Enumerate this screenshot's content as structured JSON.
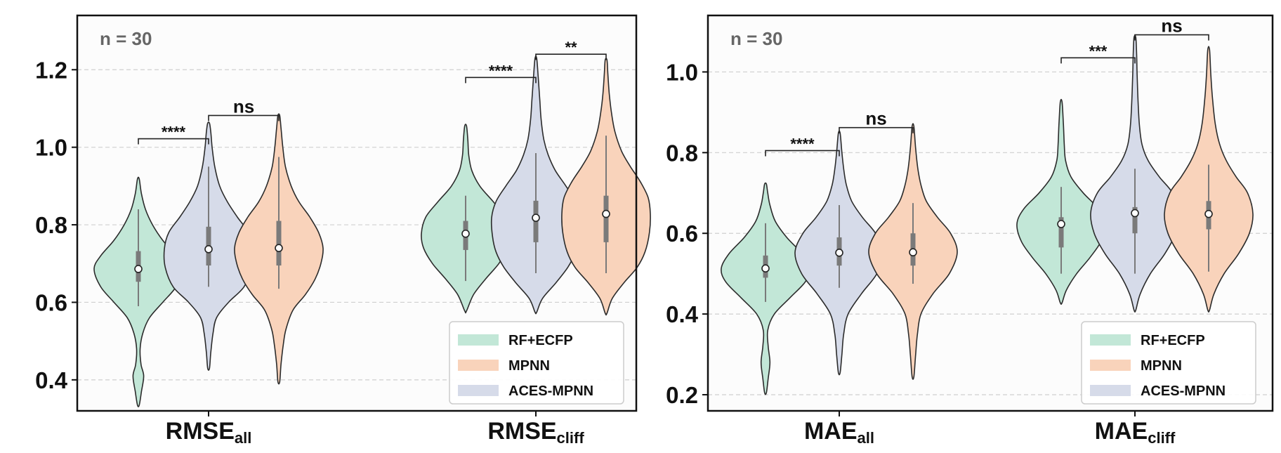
{
  "colors": {
    "RF+ECFP": "#c2e7d7",
    "MPNN": "#f9d3bb",
    "ACES-MPNN": "#d6dbe9",
    "outline": "#2b2b2b",
    "box": "#7a7a7a",
    "grid": "#cfcfcf",
    "bracket": "#222222"
  },
  "chart_data": [
    {
      "type": "violin",
      "annotation": "n = 30",
      "ylim": [
        0.32,
        1.34
      ],
      "yticks": [
        0.4,
        0.6,
        0.8,
        1.0,
        1.2
      ],
      "ytick_labels": [
        "0.4",
        "0.6",
        "0.8",
        "1.0",
        "1.2"
      ],
      "grid": true,
      "categories": [
        {
          "main": "RMSE",
          "sub": "all"
        },
        {
          "main": "RMSE",
          "sub": "cliff"
        }
      ],
      "legend": {
        "position": "lower-right",
        "entries": [
          "RF+ECFP",
          "MPNN",
          "ACES-MPNN"
        ]
      },
      "series": [
        {
          "name": "RF+ECFP",
          "group": 0,
          "median": 0.686,
          "q1": 0.653,
          "q3": 0.732,
          "wlow": 0.59,
          "whigh": 0.84,
          "min": 0.335,
          "max": 0.918,
          "density": [
            [
              0.335,
              0.02
            ],
            [
              0.37,
              0.07
            ],
            [
              0.41,
              0.12
            ],
            [
              0.44,
              0.06
            ],
            [
              0.48,
              0.04
            ],
            [
              0.52,
              0.1
            ],
            [
              0.56,
              0.25
            ],
            [
              0.6,
              0.55
            ],
            [
              0.64,
              0.85
            ],
            [
              0.686,
              1.0
            ],
            [
              0.72,
              0.85
            ],
            [
              0.76,
              0.55
            ],
            [
              0.8,
              0.32
            ],
            [
              0.84,
              0.16
            ],
            [
              0.88,
              0.07
            ],
            [
              0.918,
              0.02
            ]
          ]
        },
        {
          "name": "ACES-MPNN",
          "group": 0,
          "median": 0.737,
          "q1": 0.695,
          "q3": 0.795,
          "wlow": 0.64,
          "whigh": 0.95,
          "min": 0.43,
          "max": 1.062,
          "density": [
            [
              0.43,
              0.02
            ],
            [
              0.47,
              0.05
            ],
            [
              0.52,
              0.1
            ],
            [
              0.56,
              0.18
            ],
            [
              0.6,
              0.45
            ],
            [
              0.64,
              0.8
            ],
            [
              0.69,
              0.98
            ],
            [
              0.737,
              1.0
            ],
            [
              0.78,
              0.9
            ],
            [
              0.82,
              0.65
            ],
            [
              0.86,
              0.42
            ],
            [
              0.9,
              0.25
            ],
            [
              0.95,
              0.14
            ],
            [
              1.0,
              0.08
            ],
            [
              1.04,
              0.05
            ],
            [
              1.062,
              0.02
            ]
          ]
        },
        {
          "name": "MPNN",
          "group": 0,
          "median": 0.74,
          "q1": 0.695,
          "q3": 0.81,
          "wlow": 0.635,
          "whigh": 0.975,
          "min": 0.395,
          "max": 1.082,
          "density": [
            [
              0.395,
              0.02
            ],
            [
              0.44,
              0.05
            ],
            [
              0.49,
              0.1
            ],
            [
              0.53,
              0.16
            ],
            [
              0.58,
              0.32
            ],
            [
              0.62,
              0.6
            ],
            [
              0.66,
              0.82
            ],
            [
              0.7,
              0.95
            ],
            [
              0.74,
              1.0
            ],
            [
              0.78,
              0.9
            ],
            [
              0.82,
              0.7
            ],
            [
              0.86,
              0.45
            ],
            [
              0.9,
              0.28
            ],
            [
              0.95,
              0.15
            ],
            [
              1.0,
              0.09
            ],
            [
              1.05,
              0.05
            ],
            [
              1.082,
              0.02
            ]
          ]
        },
        {
          "name": "RF+ECFP",
          "group": 1,
          "median": 0.777,
          "q1": 0.735,
          "q3": 0.81,
          "wlow": 0.655,
          "whigh": 0.875,
          "min": 0.578,
          "max": 1.055,
          "density": [
            [
              0.578,
              0.02
            ],
            [
              0.62,
              0.18
            ],
            [
              0.66,
              0.45
            ],
            [
              0.7,
              0.75
            ],
            [
              0.74,
              0.95
            ],
            [
              0.777,
              1.0
            ],
            [
              0.82,
              0.9
            ],
            [
              0.86,
              0.62
            ],
            [
              0.9,
              0.32
            ],
            [
              0.94,
              0.14
            ],
            [
              0.98,
              0.07
            ],
            [
              1.02,
              0.05
            ],
            [
              1.055,
              0.02
            ]
          ]
        },
        {
          "name": "ACES-MPNN",
          "group": 1,
          "median": 0.818,
          "q1": 0.755,
          "q3": 0.862,
          "wlow": 0.675,
          "whigh": 0.985,
          "min": 0.575,
          "max": 1.228,
          "density": [
            [
              0.575,
              0.02
            ],
            [
              0.61,
              0.15
            ],
            [
              0.65,
              0.45
            ],
            [
              0.69,
              0.72
            ],
            [
              0.73,
              0.9
            ],
            [
              0.77,
              0.98
            ],
            [
              0.818,
              1.0
            ],
            [
              0.86,
              0.9
            ],
            [
              0.9,
              0.68
            ],
            [
              0.94,
              0.44
            ],
            [
              0.98,
              0.28
            ],
            [
              1.02,
              0.18
            ],
            [
              1.07,
              0.12
            ],
            [
              1.12,
              0.09
            ],
            [
              1.17,
              0.06
            ],
            [
              1.228,
              0.02
            ]
          ]
        },
        {
          "name": "MPNN",
          "group": 1,
          "median": 0.828,
          "q1": 0.755,
          "q3": 0.875,
          "wlow": 0.675,
          "whigh": 1.03,
          "min": 0.572,
          "max": 1.225,
          "density": [
            [
              0.572,
              0.02
            ],
            [
              0.61,
              0.14
            ],
            [
              0.65,
              0.4
            ],
            [
              0.69,
              0.7
            ],
            [
              0.73,
              0.88
            ],
            [
              0.78,
              0.98
            ],
            [
              0.828,
              1.0
            ],
            [
              0.87,
              0.95
            ],
            [
              0.91,
              0.78
            ],
            [
              0.95,
              0.55
            ],
            [
              0.99,
              0.35
            ],
            [
              1.04,
              0.2
            ],
            [
              1.09,
              0.12
            ],
            [
              1.14,
              0.07
            ],
            [
              1.19,
              0.04
            ],
            [
              1.225,
              0.02
            ]
          ]
        }
      ],
      "brackets": [
        {
          "group": 0,
          "from": "RF+ECFP",
          "to": "ACES-MPNN",
          "y": 1.022,
          "label": "****"
        },
        {
          "group": 0,
          "from": "ACES-MPNN",
          "to": "MPNN",
          "y": 1.082,
          "label": "ns"
        },
        {
          "group": 1,
          "from": "RF+ECFP",
          "to": "ACES-MPNN",
          "y": 1.18,
          "label": "****"
        },
        {
          "group": 1,
          "from": "ACES-MPNN",
          "to": "MPNN",
          "y": 1.24,
          "label": "**"
        }
      ]
    },
    {
      "type": "violin",
      "annotation": "n = 30",
      "ylim": [
        0.16,
        1.14
      ],
      "yticks": [
        0.2,
        0.4,
        0.6,
        0.8,
        1.0
      ],
      "ytick_labels": [
        "0.2",
        "0.4",
        "0.6",
        "0.8",
        "1.0"
      ],
      "grid": true,
      "categories": [
        {
          "main": "MAE",
          "sub": "all"
        },
        {
          "main": "MAE",
          "sub": "cliff"
        }
      ],
      "legend": {
        "position": "lower-right",
        "entries": [
          "RF+ECFP",
          "MPNN",
          "ACES-MPNN"
        ]
      },
      "series": [
        {
          "name": "RF+ECFP",
          "group": 0,
          "median": 0.513,
          "q1": 0.49,
          "q3": 0.545,
          "wlow": 0.43,
          "whigh": 0.625,
          "min": 0.205,
          "max": 0.722,
          "density": [
            [
              0.205,
              0.02
            ],
            [
              0.24,
              0.06
            ],
            [
              0.28,
              0.1
            ],
            [
              0.32,
              0.06
            ],
            [
              0.36,
              0.05
            ],
            [
              0.4,
              0.2
            ],
            [
              0.44,
              0.55
            ],
            [
              0.48,
              0.9
            ],
            [
              0.513,
              1.0
            ],
            [
              0.55,
              0.82
            ],
            [
              0.59,
              0.48
            ],
            [
              0.63,
              0.22
            ],
            [
              0.67,
              0.1
            ],
            [
              0.7,
              0.05
            ],
            [
              0.722,
              0.02
            ]
          ]
        },
        {
          "name": "ACES-MPNN",
          "group": 0,
          "median": 0.552,
          "q1": 0.52,
          "q3": 0.59,
          "wlow": 0.465,
          "whigh": 0.67,
          "min": 0.255,
          "max": 0.848,
          "density": [
            [
              0.255,
              0.02
            ],
            [
              0.3,
              0.06
            ],
            [
              0.35,
              0.1
            ],
            [
              0.4,
              0.2
            ],
            [
              0.45,
              0.5
            ],
            [
              0.5,
              0.85
            ],
            [
              0.552,
              1.0
            ],
            [
              0.6,
              0.82
            ],
            [
              0.64,
              0.52
            ],
            [
              0.68,
              0.28
            ],
            [
              0.72,
              0.16
            ],
            [
              0.76,
              0.1
            ],
            [
              0.8,
              0.06
            ],
            [
              0.848,
              0.02
            ]
          ]
        },
        {
          "name": "MPNN",
          "group": 0,
          "median": 0.553,
          "q1": 0.52,
          "q3": 0.6,
          "wlow": 0.475,
          "whigh": 0.675,
          "min": 0.245,
          "max": 0.865,
          "density": [
            [
              0.245,
              0.02
            ],
            [
              0.3,
              0.06
            ],
            [
              0.35,
              0.1
            ],
            [
              0.4,
              0.18
            ],
            [
              0.45,
              0.45
            ],
            [
              0.5,
              0.82
            ],
            [
              0.553,
              1.0
            ],
            [
              0.6,
              0.85
            ],
            [
              0.64,
              0.55
            ],
            [
              0.68,
              0.3
            ],
            [
              0.72,
              0.18
            ],
            [
              0.76,
              0.11
            ],
            [
              0.81,
              0.06
            ],
            [
              0.865,
              0.02
            ]
          ]
        },
        {
          "name": "RF+ECFP",
          "group": 1,
          "median": 0.623,
          "q1": 0.565,
          "q3": 0.64,
          "wlow": 0.5,
          "whigh": 0.715,
          "min": 0.428,
          "max": 0.925,
          "density": [
            [
              0.428,
              0.02
            ],
            [
              0.46,
              0.12
            ],
            [
              0.5,
              0.35
            ],
            [
              0.54,
              0.65
            ],
            [
              0.58,
              0.9
            ],
            [
              0.623,
              1.0
            ],
            [
              0.66,
              0.85
            ],
            [
              0.7,
              0.5
            ],
            [
              0.74,
              0.22
            ],
            [
              0.78,
              0.1
            ],
            [
              0.82,
              0.07
            ],
            [
              0.87,
              0.05
            ],
            [
              0.925,
              0.02
            ]
          ]
        },
        {
          "name": "ACES-MPNN",
          "group": 1,
          "median": 0.65,
          "q1": 0.6,
          "q3": 0.665,
          "wlow": 0.5,
          "whigh": 0.76,
          "min": 0.41,
          "max": 1.085,
          "density": [
            [
              0.41,
              0.02
            ],
            [
              0.45,
              0.12
            ],
            [
              0.5,
              0.35
            ],
            [
              0.55,
              0.68
            ],
            [
              0.6,
              0.92
            ],
            [
              0.65,
              1.0
            ],
            [
              0.7,
              0.85
            ],
            [
              0.74,
              0.55
            ],
            [
              0.78,
              0.3
            ],
            [
              0.82,
              0.16
            ],
            [
              0.87,
              0.1
            ],
            [
              0.93,
              0.07
            ],
            [
              0.99,
              0.05
            ],
            [
              1.04,
              0.04
            ],
            [
              1.085,
              0.02
            ]
          ]
        },
        {
          "name": "MPNN",
          "group": 1,
          "median": 0.648,
          "q1": 0.61,
          "q3": 0.68,
          "wlow": 0.505,
          "whigh": 0.77,
          "min": 0.41,
          "max": 1.055,
          "density": [
            [
              0.41,
              0.02
            ],
            [
              0.45,
              0.12
            ],
            [
              0.5,
              0.35
            ],
            [
              0.55,
              0.68
            ],
            [
              0.6,
              0.92
            ],
            [
              0.648,
              1.0
            ],
            [
              0.7,
              0.88
            ],
            [
              0.74,
              0.62
            ],
            [
              0.78,
              0.4
            ],
            [
              0.82,
              0.25
            ],
            [
              0.87,
              0.15
            ],
            [
              0.93,
              0.09
            ],
            [
              0.99,
              0.05
            ],
            [
              1.055,
              0.02
            ]
          ]
        }
      ],
      "brackets": [
        {
          "group": 0,
          "from": "RF+ECFP",
          "to": "ACES-MPNN",
          "y": 0.805,
          "label": "****"
        },
        {
          "group": 0,
          "from": "ACES-MPNN",
          "to": "MPNN",
          "y": 0.862,
          "label": "ns"
        },
        {
          "group": 1,
          "from": "RF+ECFP",
          "to": "ACES-MPNN",
          "y": 1.035,
          "label": "***"
        },
        {
          "group": 1,
          "from": "ACES-MPNN",
          "to": "MPNN",
          "y": 1.092,
          "label": "ns"
        }
      ]
    }
  ]
}
